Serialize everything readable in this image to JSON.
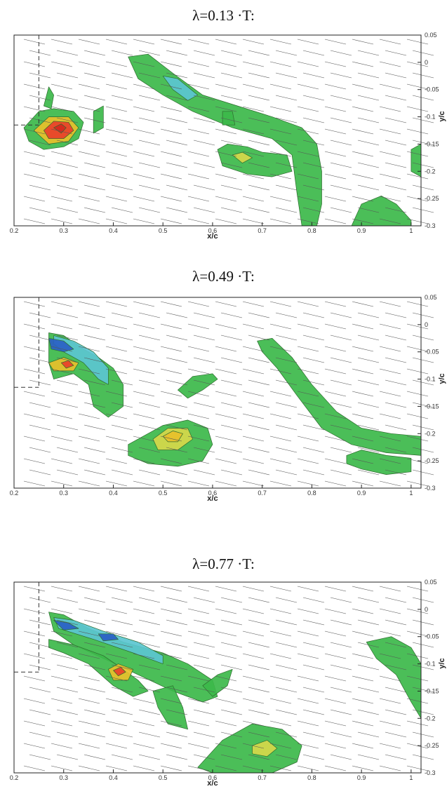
{
  "chart_data": [
    {
      "type": "contour",
      "title": "λ=0.13 ·T:",
      "xlabel": "x/c",
      "ylabel": "y/c",
      "xlim": [
        0.2,
        1.02
      ],
      "ylim": [
        -0.3,
        0.05
      ],
      "xticks": [
        "0.2",
        "0.3",
        "0.4",
        "0.5",
        "0.6",
        "0.7",
        "0.8",
        "0.9",
        "1"
      ],
      "yticks": [
        "0.05",
        "0",
        "-0.05",
        "-0.1",
        "-0.15",
        "-0.2",
        "-0.25",
        "-0.3"
      ],
      "overlay": "velocity vectors",
      "features": [
        {
          "kind": "vortex",
          "x": 0.29,
          "y": -0.12,
          "color": "red"
        },
        {
          "kind": "shear layer",
          "x": 0.55,
          "y": -0.05,
          "color": "cyan"
        },
        {
          "kind": "vortex",
          "x": 0.65,
          "y": -0.17,
          "color": "yellow"
        }
      ]
    },
    {
      "type": "contour",
      "title": "λ=0.49 ·T:",
      "xlabel": "x/c",
      "ylabel": "y/c",
      "xlim": [
        0.2,
        1.02
      ],
      "ylim": [
        -0.3,
        0.05
      ],
      "xticks": [
        "0.2",
        "0.3",
        "0.4",
        "0.5",
        "0.6",
        "0.7",
        "0.8",
        "0.9",
        "1"
      ],
      "yticks": [
        "0.05",
        "0",
        "-0.05",
        "-0.1",
        "-0.15",
        "-0.2",
        "-0.25",
        "-0.3"
      ],
      "overlay": "velocity vectors",
      "features": [
        {
          "kind": "vortex",
          "x": 0.3,
          "y": -0.07,
          "color": "orange"
        },
        {
          "kind": "shear layer",
          "x": 0.3,
          "y": -0.04,
          "color": "blue"
        },
        {
          "kind": "vortex",
          "x": 0.52,
          "y": -0.2,
          "color": "yellow"
        }
      ]
    },
    {
      "type": "contour",
      "title": "λ=0.77 ·T:",
      "xlabel": "x/c",
      "ylabel": "y/c",
      "xlim": [
        0.2,
        1.02
      ],
      "ylim": [
        -0.3,
        0.05
      ],
      "xticks": [
        "0.2",
        "0.3",
        "0.4",
        "0.5",
        "0.6",
        "0.7",
        "0.8",
        "0.9",
        "1"
      ],
      "yticks": [
        "0.05",
        "0",
        "-0.05",
        "-0.1",
        "-0.15",
        "-0.2",
        "-0.25",
        "-0.3"
      ],
      "overlay": "velocity vectors",
      "features": [
        {
          "kind": "vortex",
          "x": 0.41,
          "y": -0.12,
          "color": "orange"
        },
        {
          "kind": "shear layer",
          "x": 0.32,
          "y": -0.03,
          "color": "blue"
        },
        {
          "kind": "vortex",
          "x": 0.71,
          "y": -0.26,
          "color": "yellow"
        }
      ]
    }
  ]
}
